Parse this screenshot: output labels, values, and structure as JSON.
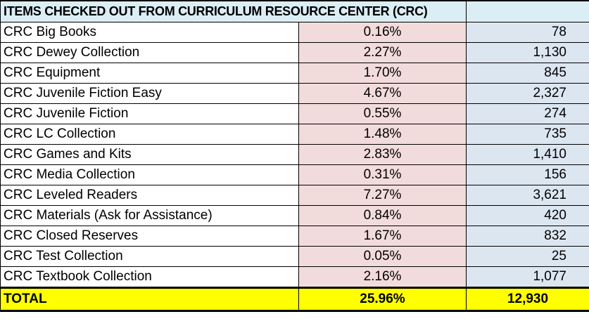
{
  "table": {
    "title": "ITEMS CHECKED OUT FROM CURRICULUM RESOURCE CENTER (CRC)",
    "rows": [
      {
        "name": "CRC Big Books",
        "pct": "0.16%",
        "count": "78"
      },
      {
        "name": "CRC Dewey Collection",
        "pct": "2.27%",
        "count": "1,130"
      },
      {
        "name": "CRC Equipment",
        "pct": "1.70%",
        "count": "845"
      },
      {
        "name": "CRC Juvenile Fiction Easy",
        "pct": "4.67%",
        "count": "2,327"
      },
      {
        "name": "CRC Juvenile Fiction",
        "pct": "0.55%",
        "count": "274"
      },
      {
        "name": "CRC LC Collection",
        "pct": "1.48%",
        "count": "735"
      },
      {
        "name": "CRC Games and Kits",
        "pct": "2.83%",
        "count": "1,410"
      },
      {
        "name": "CRC Media Collection",
        "pct": "0.31%",
        "count": "156"
      },
      {
        "name": "CRC Leveled Readers",
        "pct": "7.27%",
        "count": "3,621"
      },
      {
        "name": "CRC Materials (Ask for Assistance)",
        "pct": "0.84%",
        "count": "420"
      },
      {
        "name": "CRC Closed Reserves",
        "pct": "1.67%",
        "count": "832"
      },
      {
        "name": "CRC Test Collection",
        "pct": "0.05%",
        "count": "25"
      },
      {
        "name": "CRC Textbook Collection",
        "pct": "2.16%",
        "count": "1,077"
      }
    ],
    "total": {
      "label": "TOTAL",
      "pct": "25.96%",
      "count": "12,930"
    }
  },
  "colors": {
    "header_bg": "#dbeef5",
    "pct_bg": "#f2dcdb",
    "count_bg": "#dce6f1",
    "total_bg": "#ffff00"
  }
}
